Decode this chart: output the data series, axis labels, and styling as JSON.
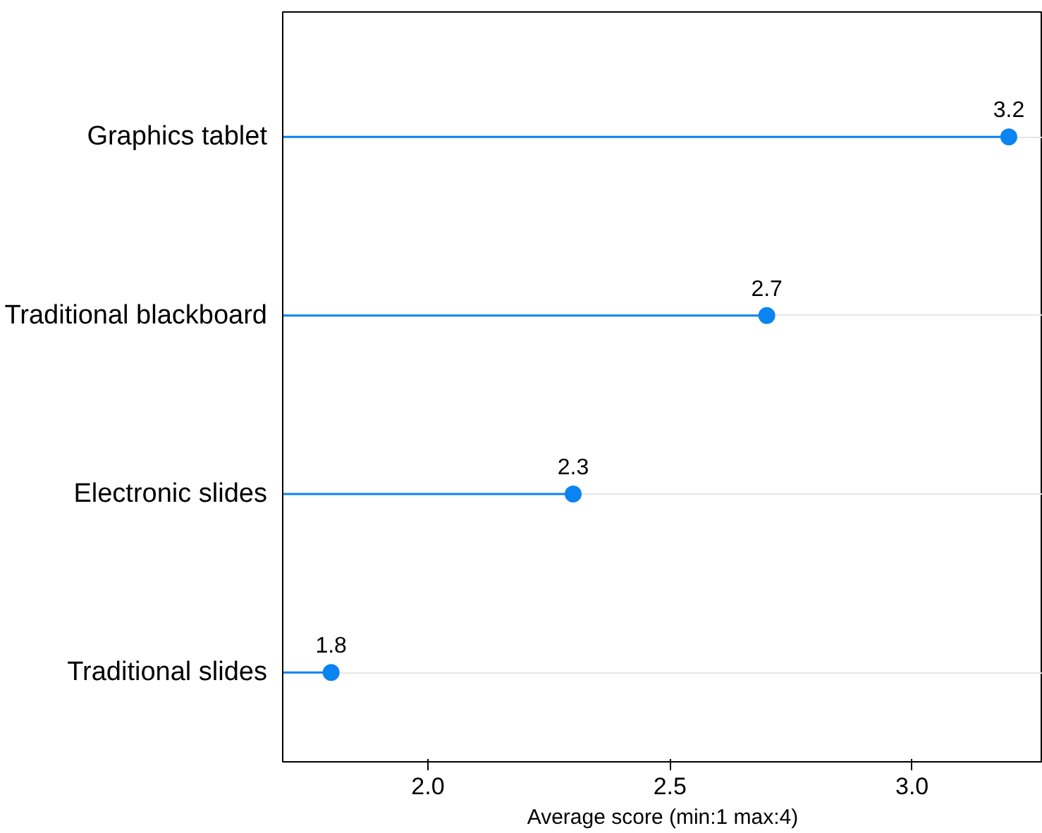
{
  "chart_data": {
    "type": "lollipop",
    "orientation": "horizontal",
    "categories": [
      "Graphics tablet",
      "Traditional blackboard",
      "Electronic slides",
      "Traditional slides"
    ],
    "values": [
      3.2,
      2.7,
      2.3,
      1.8
    ],
    "color": "#0a84f0",
    "data_labels": true,
    "xlabel": "Average score (min:1 max:4)",
    "xlim": [
      1.7,
      3.27
    ],
    "xticks": [
      {
        "value": 2,
        "label": "2.0"
      },
      {
        "value": 2.5,
        "label": "2.5"
      },
      {
        "value": 3,
        "label": "3.0"
      }
    ],
    "grid": "y",
    "marker": "circle"
  }
}
